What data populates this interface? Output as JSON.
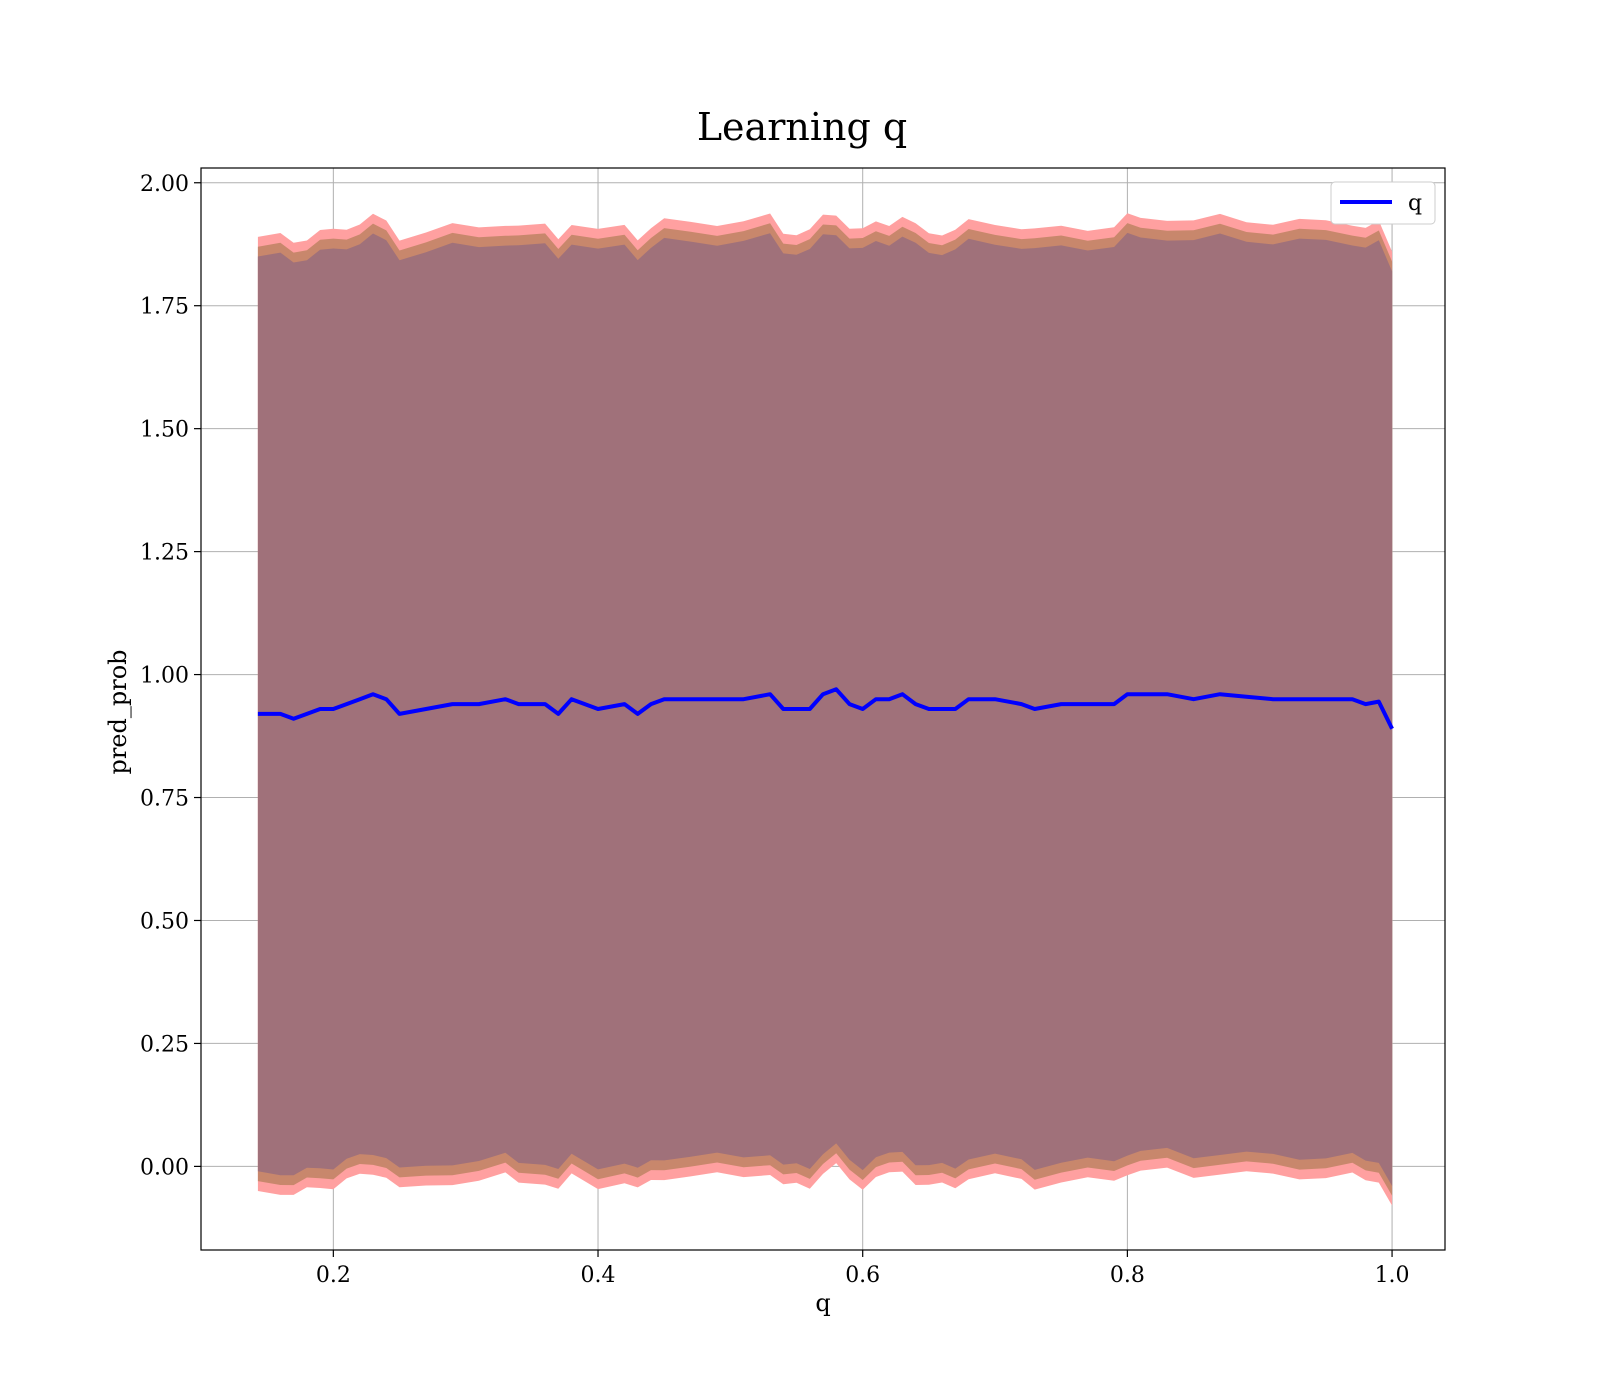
{
  "chart_data": {
    "type": "line",
    "title": "Learning q",
    "xlabel": "q",
    "ylabel": "pred_prob",
    "xlim": [
      0.1,
      1.04
    ],
    "ylim": [
      -0.17,
      2.03
    ],
    "xticks": [
      0.2,
      0.4,
      0.6,
      0.8,
      1.0
    ],
    "xtick_labels": [
      "0.2",
      "0.4",
      "0.6",
      "0.8",
      "1.0"
    ],
    "yticks": [
      0.0,
      0.25,
      0.5,
      0.75,
      1.0,
      1.25,
      1.5,
      1.75,
      2.0
    ],
    "ytick_labels": [
      "0.00",
      "0.25",
      "0.50",
      "0.75",
      "1.00",
      "1.25",
      "1.50",
      "1.75",
      "2.00"
    ],
    "grid": true,
    "legend": {
      "position": "top-right",
      "entries": [
        "q"
      ]
    },
    "colors": {
      "line": "#0000ff",
      "band_outer": "#ffa0a0",
      "band_middle": "#c8876c",
      "band_inner": "#a0717a",
      "grid": "#b0b0b0"
    },
    "band_half_widths": {
      "inner": 0.93,
      "middle": 0.95,
      "outer": 0.97
    },
    "series": [
      {
        "name": "q",
        "x": [
          0.143,
          0.16,
          0.17,
          0.18,
          0.19,
          0.2,
          0.21,
          0.22,
          0.23,
          0.24,
          0.25,
          0.27,
          0.29,
          0.31,
          0.33,
          0.34,
          0.36,
          0.37,
          0.38,
          0.4,
          0.42,
          0.43,
          0.44,
          0.45,
          0.47,
          0.49,
          0.51,
          0.53,
          0.54,
          0.55,
          0.56,
          0.57,
          0.58,
          0.59,
          0.6,
          0.61,
          0.62,
          0.63,
          0.64,
          0.65,
          0.66,
          0.67,
          0.68,
          0.7,
          0.72,
          0.73,
          0.75,
          0.77,
          0.79,
          0.8,
          0.81,
          0.83,
          0.85,
          0.87,
          0.89,
          0.91,
          0.93,
          0.95,
          0.97,
          0.98,
          0.99,
          1.0
        ],
        "y": [
          0.92,
          0.92,
          0.91,
          0.92,
          0.93,
          0.93,
          0.94,
          0.95,
          0.96,
          0.95,
          0.92,
          0.93,
          0.94,
          0.94,
          0.95,
          0.94,
          0.94,
          0.92,
          0.95,
          0.93,
          0.94,
          0.92,
          0.94,
          0.95,
          0.95,
          0.95,
          0.95,
          0.96,
          0.93,
          0.93,
          0.93,
          0.96,
          0.97,
          0.94,
          0.93,
          0.95,
          0.95,
          0.96,
          0.94,
          0.93,
          0.93,
          0.93,
          0.95,
          0.95,
          0.94,
          0.93,
          0.94,
          0.94,
          0.94,
          0.96,
          0.96,
          0.96,
          0.95,
          0.96,
          0.955,
          0.95,
          0.95,
          0.95,
          0.95,
          0.94,
          0.945,
          0.89
        ]
      }
    ]
  }
}
